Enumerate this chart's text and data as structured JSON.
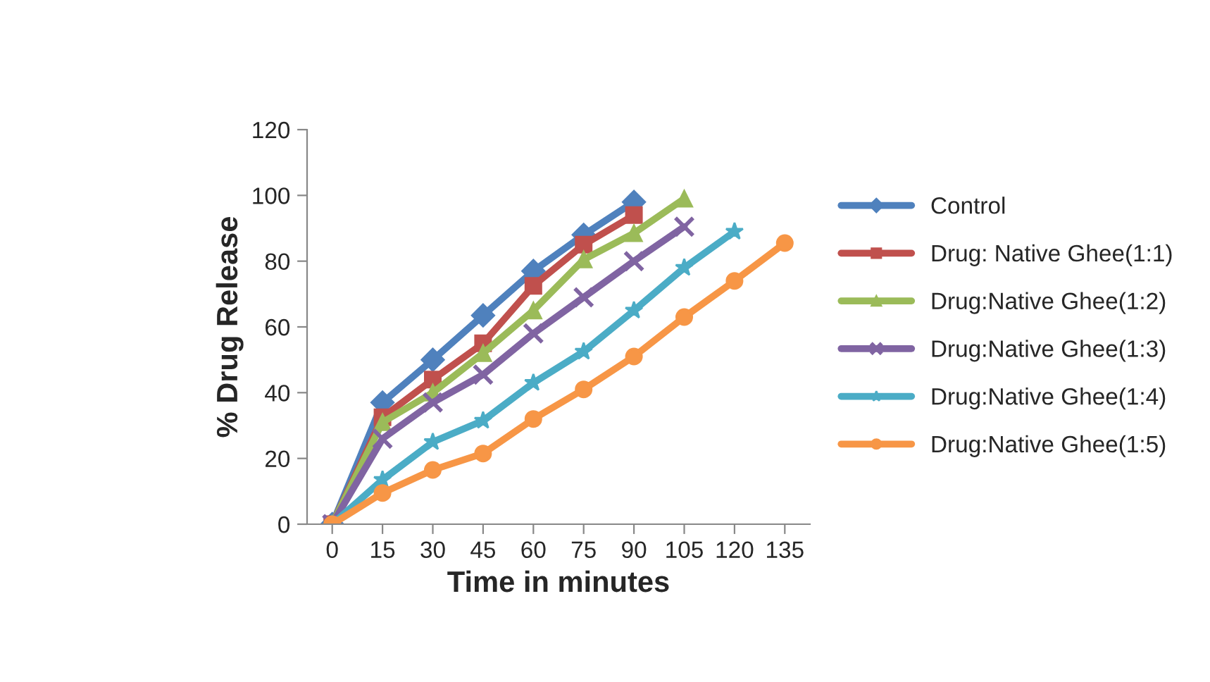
{
  "chart_data": {
    "type": "line",
    "xlabel": "Time in minutes",
    "ylabel": "% Drug Release",
    "categories": [
      "0",
      "15",
      "30",
      "45",
      "60",
      "75",
      "90",
      "105",
      "120",
      "135"
    ],
    "ylim": [
      0,
      120
    ],
    "yticks": [
      0,
      20,
      40,
      60,
      80,
      100,
      120
    ],
    "grid": false,
    "legend": "right",
    "series": [
      {
        "name": "Control",
        "color": "#4f81bd",
        "marker": "diamond",
        "values": [
          0,
          37,
          50,
          63.5,
          77,
          88,
          98,
          null,
          null,
          null
        ]
      },
      {
        "name": "Drug: Native Ghee(1:1)",
        "color": "#c0504d",
        "marker": "square",
        "values": [
          0,
          32.5,
          44,
          55,
          72.5,
          85,
          94,
          null,
          null,
          null
        ]
      },
      {
        "name": "Drug:Native Ghee(1:2)",
        "color": "#9bbb59",
        "marker": "triangle",
        "values": [
          0,
          31,
          40,
          52,
          65,
          80.5,
          88.5,
          99,
          null,
          null
        ]
      },
      {
        "name": "Drug:Native Ghee(1:3)",
        "color": "#8064a2",
        "marker": "cross",
        "values": [
          0,
          26,
          37,
          45.5,
          58,
          69,
          80,
          90.5,
          null,
          null
        ]
      },
      {
        "name": "Drug:Native Ghee(1:4)",
        "color": "#4bacc6",
        "marker": "star",
        "values": [
          0,
          13.5,
          25,
          31.5,
          43,
          52.5,
          65,
          78,
          89,
          null
        ]
      },
      {
        "name": "Drug:Native Ghee(1:5)",
        "color": "#f79646",
        "marker": "circle",
        "values": [
          0,
          9.5,
          16.5,
          21.5,
          32,
          41,
          51,
          63,
          74,
          85.5
        ]
      }
    ]
  }
}
